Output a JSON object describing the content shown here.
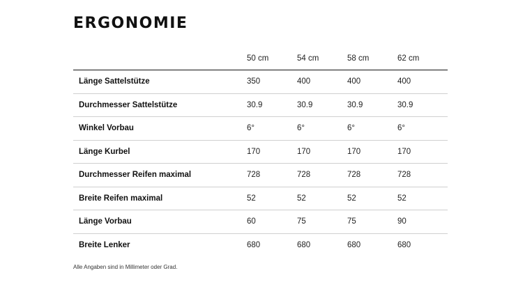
{
  "title": "ERGONOMIE",
  "table": {
    "header_label": "",
    "sizes": [
      "50 cm",
      "54 cm",
      "58 cm",
      "62 cm"
    ],
    "rows": [
      {
        "label": "Länge Sattelstütze",
        "values": [
          "350",
          "400",
          "400",
          "400"
        ]
      },
      {
        "label": "Durchmesser Sattelstütze",
        "values": [
          "30.9",
          "30.9",
          "30.9",
          "30.9"
        ]
      },
      {
        "label": "Winkel Vorbau",
        "values": [
          "6°",
          "6°",
          "6°",
          "6°"
        ]
      },
      {
        "label": "Länge Kurbel",
        "values": [
          "170",
          "170",
          "170",
          "170"
        ]
      },
      {
        "label": "Durchmesser Reifen maximal",
        "values": [
          "728",
          "728",
          "728",
          "728"
        ]
      },
      {
        "label": "Breite Reifen maximal",
        "values": [
          "52",
          "52",
          "52",
          "52"
        ]
      },
      {
        "label": "Länge Vorbau",
        "values": [
          "60",
          "75",
          "75",
          "90"
        ]
      },
      {
        "label": "Breite Lenker",
        "values": [
          "680",
          "680",
          "680",
          "680"
        ]
      }
    ]
  },
  "footnote": "Alle Angaben sind in Millimeter oder Grad."
}
